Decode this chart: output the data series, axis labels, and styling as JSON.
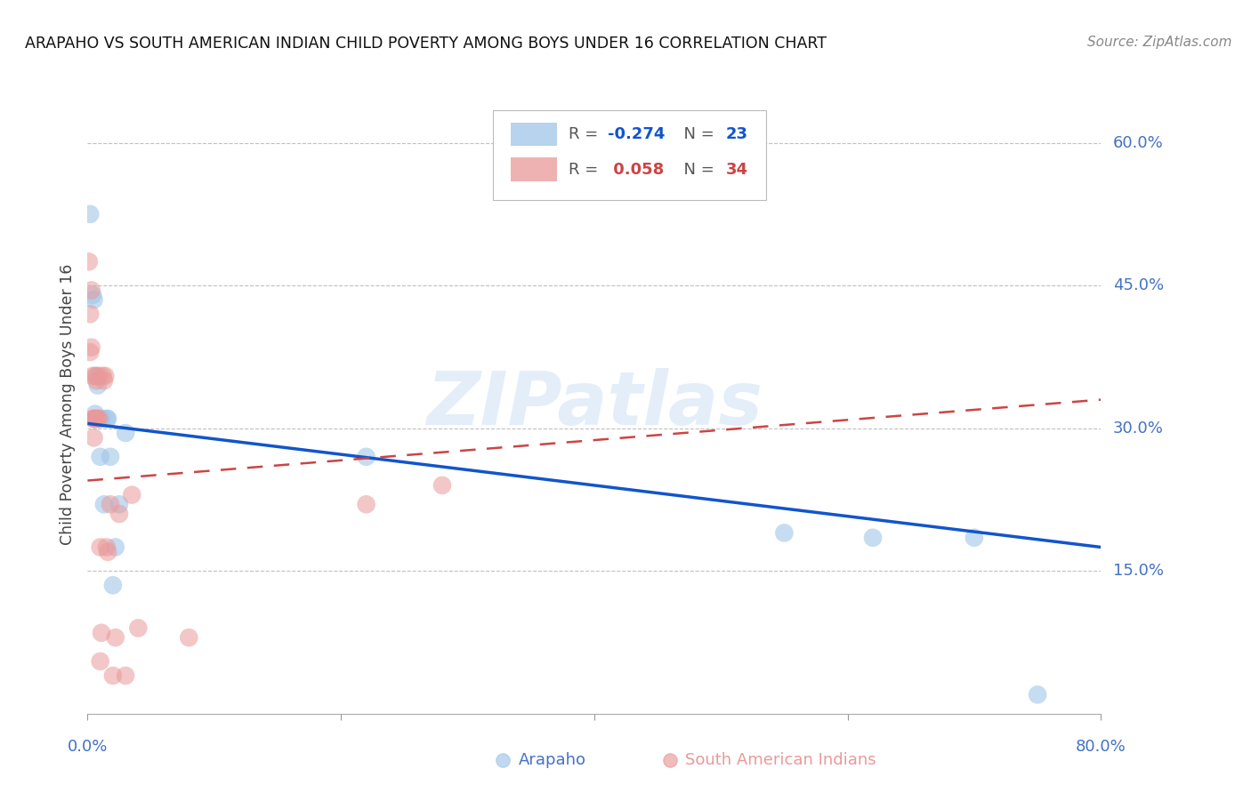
{
  "title": "ARAPAHO VS SOUTH AMERICAN INDIAN CHILD POVERTY AMONG BOYS UNDER 16 CORRELATION CHART",
  "source": "Source: ZipAtlas.com",
  "ylabel": "Child Poverty Among Boys Under 16",
  "xlim": [
    0.0,
    0.8
  ],
  "ylim": [
    0.0,
    0.65
  ],
  "yticks": [
    0.15,
    0.3,
    0.45,
    0.6
  ],
  "ytick_labels": [
    "15.0%",
    "30.0%",
    "45.0%",
    "60.0%"
  ],
  "xticks": [
    0.0,
    0.2,
    0.4,
    0.6,
    0.8
  ],
  "background_color": "#ffffff",
  "axis_color": "#4472c4",
  "grid_color": "#c0c0c0",
  "arapaho_color": "#9fc5e8",
  "south_american_color": "#ea9999",
  "arapaho_line_color": "#1155cc",
  "south_american_line_color": "#cc4444",
  "watermark_text": "ZIPatlas",
  "R_arapaho": -0.274,
  "N_arapaho": 23,
  "R_south_american": 0.058,
  "N_south_american": 34,
  "arapaho_x": [
    0.002,
    0.004,
    0.005,
    0.006,
    0.006,
    0.007,
    0.008,
    0.009,
    0.01,
    0.011,
    0.013,
    0.015,
    0.016,
    0.018,
    0.02,
    0.022,
    0.025,
    0.03,
    0.22,
    0.55,
    0.62,
    0.7,
    0.75
  ],
  "arapaho_y": [
    0.525,
    0.44,
    0.435,
    0.315,
    0.31,
    0.355,
    0.345,
    0.31,
    0.27,
    0.31,
    0.22,
    0.31,
    0.31,
    0.27,
    0.135,
    0.175,
    0.22,
    0.295,
    0.27,
    0.19,
    0.185,
    0.185,
    0.02
  ],
  "south_american_x": [
    0.001,
    0.002,
    0.002,
    0.003,
    0.003,
    0.004,
    0.004,
    0.005,
    0.005,
    0.006,
    0.006,
    0.007,
    0.007,
    0.008,
    0.009,
    0.009,
    0.01,
    0.01,
    0.011,
    0.012,
    0.013,
    0.014,
    0.015,
    0.016,
    0.018,
    0.02,
    0.022,
    0.025,
    0.03,
    0.035,
    0.04,
    0.08,
    0.22,
    0.28
  ],
  "south_american_y": [
    0.475,
    0.42,
    0.38,
    0.445,
    0.385,
    0.355,
    0.31,
    0.31,
    0.29,
    0.355,
    0.31,
    0.35,
    0.31,
    0.31,
    0.355,
    0.31,
    0.175,
    0.055,
    0.085,
    0.355,
    0.35,
    0.355,
    0.175,
    0.17,
    0.22,
    0.04,
    0.08,
    0.21,
    0.04,
    0.23,
    0.09,
    0.08,
    0.22,
    0.24
  ],
  "arapaho_trend_x": [
    0.0,
    0.8
  ],
  "arapaho_trend_y": [
    0.305,
    0.175
  ],
  "south_trend_x": [
    0.0,
    0.8
  ],
  "south_trend_y": [
    0.245,
    0.33
  ]
}
